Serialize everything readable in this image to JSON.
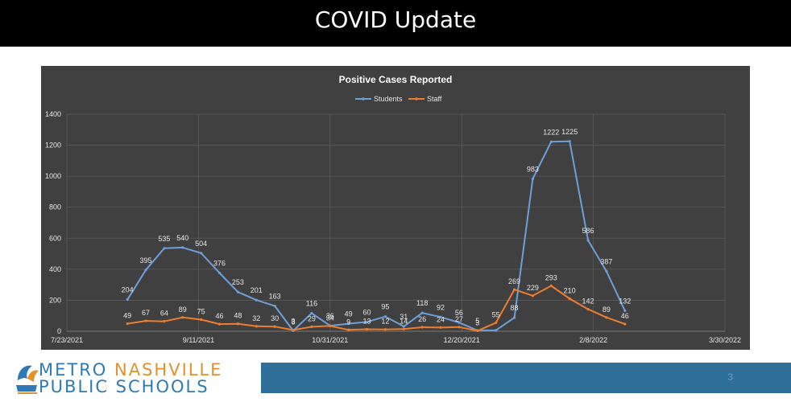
{
  "slide": {
    "title": "COVID Update",
    "page_number": "3"
  },
  "logo": {
    "word1": "METRO",
    "word2": "NASHVILLE",
    "line2": "PUBLIC SCHOOLS"
  },
  "colors": {
    "students": "#6f9fd8",
    "staff": "#ed7d31",
    "chart_bg": "#404040",
    "footer": "#2f6e99"
  },
  "chart_data": {
    "type": "line",
    "title": "Positive Cases Reported",
    "xlabel": "",
    "ylabel": "",
    "ylim": [
      0,
      1400
    ],
    "yticks": [
      0,
      200,
      400,
      600,
      800,
      1000,
      1200,
      1400
    ],
    "x_tick_labels": [
      "7/23/2021",
      "9/11/2021",
      "10/31/2021",
      "12/20/2021",
      "2/8/2022",
      "3/30/2022"
    ],
    "x_tick_days": [
      0,
      50,
      100,
      150,
      200,
      250
    ],
    "legend_position": "top-center",
    "series": [
      {
        "name": "Students",
        "color": "#6f9fd8",
        "points": [
          {
            "x": 23,
            "y": 204,
            "label": "204"
          },
          {
            "x": 30,
            "y": 395,
            "label": "395"
          },
          {
            "x": 37,
            "y": 535,
            "label": "535"
          },
          {
            "x": 44,
            "y": 540,
            "label": "540"
          },
          {
            "x": 51,
            "y": 504,
            "label": "504"
          },
          {
            "x": 58,
            "y": 376,
            "label": "376"
          },
          {
            "x": 65,
            "y": 253,
            "label": "253"
          },
          {
            "x": 72,
            "y": 201,
            "label": "201"
          },
          {
            "x": 79,
            "y": 163,
            "label": "163"
          },
          {
            "x": 86,
            "y": 3,
            "label": "3"
          },
          {
            "x": 93,
            "y": 116,
            "label": "116"
          },
          {
            "x": 100,
            "y": 36,
            "label": "36"
          },
          {
            "x": 107,
            "y": 49,
            "label": "49"
          },
          {
            "x": 114,
            "y": 60,
            "label": "60"
          },
          {
            "x": 121,
            "y": 95,
            "label": "95"
          },
          {
            "x": 128,
            "y": 31,
            "label": "31"
          },
          {
            "x": 135,
            "y": 118,
            "label": "118"
          },
          {
            "x": 142,
            "y": 92,
            "label": "92"
          },
          {
            "x": 149,
            "y": 56,
            "label": "56"
          },
          {
            "x": 156,
            "y": 5,
            "label": "5"
          },
          {
            "x": 163,
            "y": 6,
            "label": ""
          },
          {
            "x": 170,
            "y": 88,
            "label": "88"
          },
          {
            "x": 177,
            "y": 983,
            "label": "983"
          },
          {
            "x": 184,
            "y": 1222,
            "label": "1222"
          },
          {
            "x": 191,
            "y": 1225,
            "label": "1225"
          },
          {
            "x": 198,
            "y": 586,
            "label": "586"
          },
          {
            "x": 205,
            "y": 387,
            "label": "387"
          },
          {
            "x": 212,
            "y": 132,
            "label": "132"
          }
        ]
      },
      {
        "name": "Staff",
        "color": "#ed7d31",
        "points": [
          {
            "x": 23,
            "y": 49,
            "label": "49"
          },
          {
            "x": 30,
            "y": 67,
            "label": "67"
          },
          {
            "x": 37,
            "y": 64,
            "label": "64"
          },
          {
            "x": 44,
            "y": 89,
            "label": "89"
          },
          {
            "x": 51,
            "y": 75,
            "label": "75"
          },
          {
            "x": 58,
            "y": 46,
            "label": "46"
          },
          {
            "x": 65,
            "y": 48,
            "label": "48"
          },
          {
            "x": 72,
            "y": 32,
            "label": "32"
          },
          {
            "x": 79,
            "y": 30,
            "label": "30"
          },
          {
            "x": 86,
            "y": 8,
            "label": "8"
          },
          {
            "x": 93,
            "y": 29,
            "label": "29"
          },
          {
            "x": 100,
            "y": 34,
            "label": "34"
          },
          {
            "x": 107,
            "y": 9,
            "label": "9"
          },
          {
            "x": 114,
            "y": 13,
            "label": "13"
          },
          {
            "x": 121,
            "y": 12,
            "label": "12"
          },
          {
            "x": 128,
            "y": 14,
            "label": "14"
          },
          {
            "x": 135,
            "y": 26,
            "label": "26"
          },
          {
            "x": 142,
            "y": 24,
            "label": "24"
          },
          {
            "x": 149,
            "y": 27,
            "label": "27"
          },
          {
            "x": 156,
            "y": 3,
            "label": "3"
          },
          {
            "x": 163,
            "y": 55,
            "label": "55"
          },
          {
            "x": 170,
            "y": 269,
            "label": "269"
          },
          {
            "x": 177,
            "y": 229,
            "label": "229"
          },
          {
            "x": 184,
            "y": 293,
            "label": "293"
          },
          {
            "x": 191,
            "y": 210,
            "label": "210"
          },
          {
            "x": 198,
            "y": 142,
            "label": "142"
          },
          {
            "x": 205,
            "y": 89,
            "label": "89"
          },
          {
            "x": 212,
            "y": 46,
            "label": "46"
          }
        ]
      }
    ]
  }
}
